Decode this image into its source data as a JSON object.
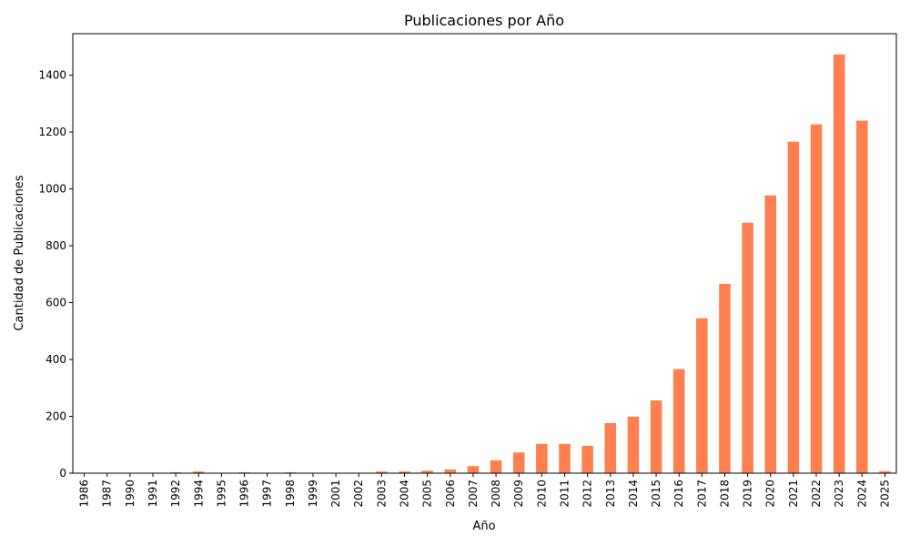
{
  "colors": {
    "bar": "#ff7f50",
    "axis": "#000000"
  },
  "chart_data": {
    "type": "bar",
    "title": "Publicaciones por Año",
    "xlabel": "Año",
    "ylabel": "Cantidad de Publicaciones",
    "categories": [
      "1986",
      "1987",
      "1990",
      "1991",
      "1992",
      "1994",
      "1995",
      "1996",
      "1997",
      "1998",
      "1999",
      "2001",
      "2002",
      "2003",
      "2004",
      "2005",
      "2006",
      "2007",
      "2008",
      "2009",
      "2010",
      "2011",
      "2012",
      "2013",
      "2014",
      "2015",
      "2016",
      "2017",
      "2018",
      "2019",
      "2020",
      "2021",
      "2022",
      "2023",
      "2024",
      "2025"
    ],
    "values": [
      1,
      1,
      1,
      1,
      3,
      6,
      1,
      3,
      1,
      3,
      1,
      1,
      1,
      6,
      6,
      9,
      13,
      25,
      45,
      73,
      103,
      103,
      96,
      176,
      199,
      256,
      366,
      545,
      666,
      881,
      977,
      1166,
      1227,
      1473,
      1240,
      7
    ],
    "yticks": [
      0,
      200,
      400,
      600,
      800,
      1000,
      1200,
      1400
    ],
    "ylim": [
      0,
      1546
    ],
    "grid": false,
    "legend": "none"
  }
}
